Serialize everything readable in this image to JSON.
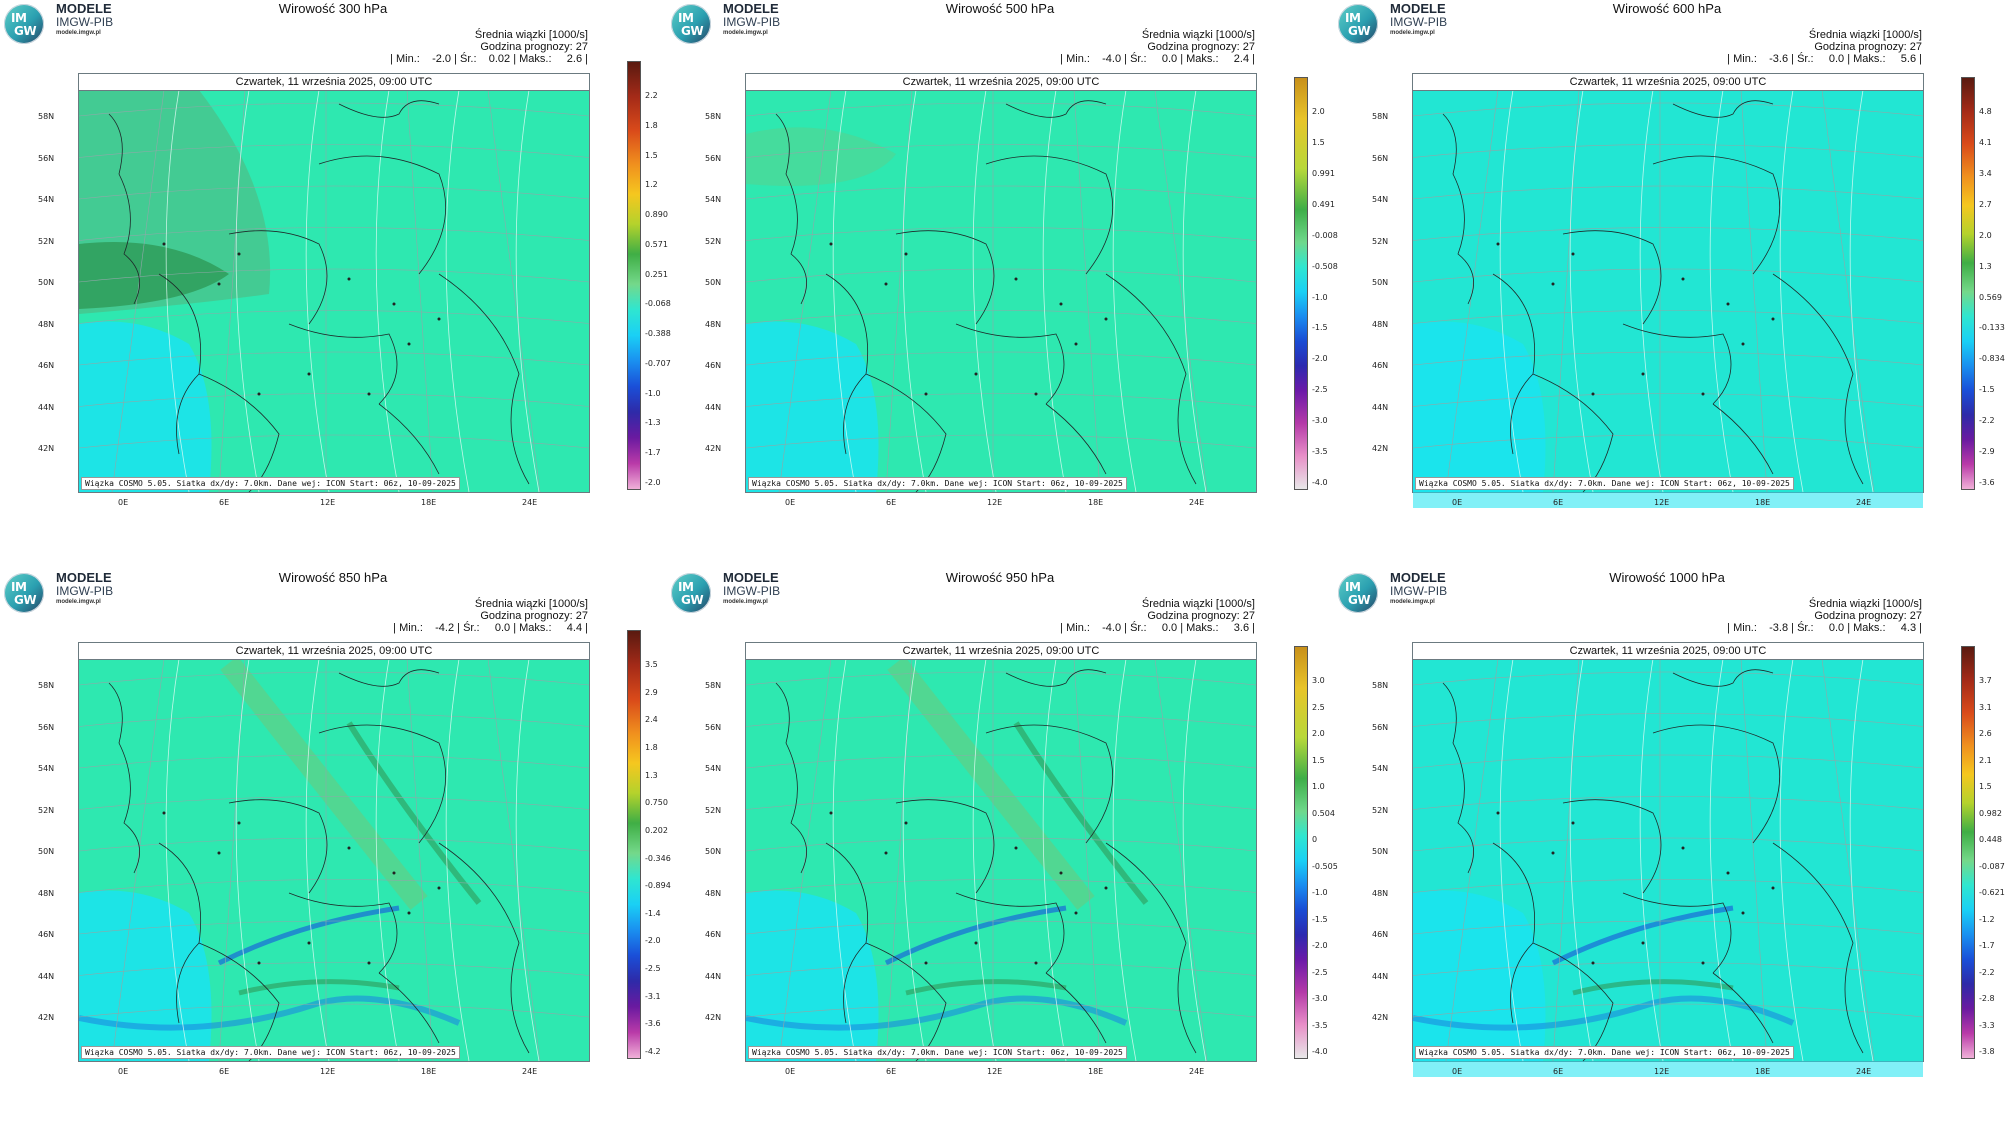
{
  "brand": {
    "badge_top": "IM",
    "badge_bottom": "GW",
    "name": "MODELE",
    "org": "IMGW-PIB",
    "site": "modele.imgw.pl"
  },
  "common": {
    "stat_label": "Średnia wiązki [1000/s]",
    "forecast_hour": "Godzina prognozy: 27",
    "date": "Czwartek, 11 września 2025, 09:00 UTC",
    "footer": "Wiązka COSMO 5.05. Siatka dx/dy: 7.0km. Dane wej: ICON Start: 06z, 10-09-2025",
    "lat_labels": [
      "58N",
      "56N",
      "54N",
      "52N",
      "50N",
      "48N",
      "46N",
      "44N",
      "42N"
    ],
    "lon_labels": [
      "0E",
      "6E",
      "12E",
      "18E",
      "24E"
    ]
  },
  "panels": [
    {
      "title": "Wirowość 300 hPa",
      "stats": "| Min.:    -2.0 | Śr.:    0.02 | Maks.:     2.6 |",
      "ticks": [
        "2.2",
        "1.8",
        "1.5",
        "1.2",
        "0.890",
        "0.571",
        "0.251",
        "-0.068",
        "-0.388",
        "-0.707",
        "-1.0",
        "-1.3",
        "-1.7",
        "-2.0"
      ],
      "scheme": "a"
    },
    {
      "title": "Wirowość 500 hPa",
      "stats": "| Min.:    -4.0 | Śr.:     0.0 | Maks.:     2.4 |",
      "ticks": [
        "2.0",
        "1.5",
        "0.991",
        "0.491",
        "-0.008",
        "-0.508",
        "-1.0",
        "-1.5",
        "-2.0",
        "-2.5",
        "-3.0",
        "-3.5",
        "-4.0"
      ],
      "scheme": "b"
    },
    {
      "title": "Wirowość 600 hPa",
      "stats": "| Min.:    -3.6 | Śr.:     0.0 | Maks.:     5.6 |",
      "ticks": [
        "4.8",
        "4.1",
        "3.4",
        "2.7",
        "2.0",
        "1.3",
        "0.569",
        "-0.133",
        "-0.834",
        "-1.5",
        "-2.2",
        "-2.9",
        "-3.6"
      ],
      "scheme": "c"
    },
    {
      "title": "Wirowość 850 hPa",
      "stats": "| Min.:    -4.2 | Śr.:     0.0 | Maks.:     4.4 |",
      "ticks": [
        "3.5",
        "2.9",
        "2.4",
        "1.8",
        "1.3",
        "0.750",
        "0.202",
        "-0.346",
        "-0.894",
        "-1.4",
        "-2.0",
        "-2.5",
        "-3.1",
        "-3.6",
        "-4.2"
      ],
      "scheme": "d"
    },
    {
      "title": "Wirowość 950 hPa",
      "stats": "| Min.:    -4.0 | Śr.:     0.0 | Maks.:     3.6 |",
      "ticks": [
        "3.0",
        "2.5",
        "2.0",
        "1.5",
        "1.0",
        "0.504",
        "0",
        "-0.505",
        "-1.0",
        "-1.5",
        "-2.0",
        "-2.5",
        "-3.0",
        "-3.5",
        "-4.0"
      ],
      "scheme": "e"
    },
    {
      "title": "Wirowość 1000 hPa",
      "stats": "| Min.:    -3.8 | Śr.:     0.0 | Maks.:     4.3 |",
      "ticks": [
        "3.7",
        "3.1",
        "2.6",
        "2.1",
        "1.5",
        "0.982",
        "0.448",
        "-0.087",
        "-0.621",
        "-1.2",
        "-1.7",
        "-2.2",
        "-2.8",
        "-3.3",
        "-3.8"
      ],
      "scheme": "f"
    }
  ],
  "colors": {
    "base": "#2ee8b0",
    "neg": "#1ae3f0",
    "pos": "#62cf78",
    "grid": "#8fa8a8",
    "border": "#1e2a2a"
  }
}
